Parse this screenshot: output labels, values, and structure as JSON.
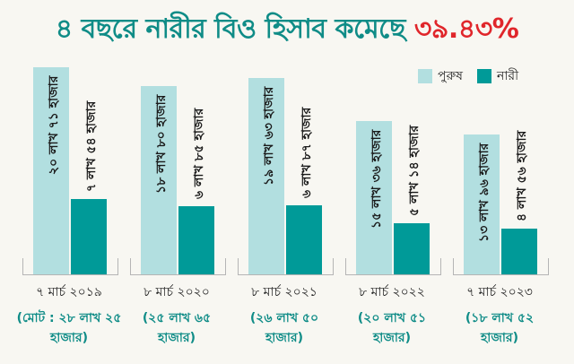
{
  "chart_data": {
    "type": "bar",
    "title": "৪ বছরে নারীর বিও হিসাব কমেছে",
    "title_highlight": "৩৯.৪৩%",
    "categories": [
      "৭ মার্চ ২০১৯",
      "৮ মার্চ ২০২০",
      "৮ মার্চ ২০২১",
      "৮ মার্চ ২০২২",
      "৭ মার্চ ২০২৩"
    ],
    "totals": [
      "(মোট : ২৮ লাখ ২৫ হাজার)",
      "(২৫ লাখ ৬৫ হাজার)",
      "(২৬ লাখ ৫০ হাজার)",
      "(২০ লাখ ৫১ হাজার)",
      "(১৮ লাখ ৫২ হাজার)"
    ],
    "unit": "লাখ",
    "series": [
      {
        "name": "পুরুষ",
        "color": "#b2dfe0",
        "values": [
          20.71,
          18.8,
          19.63,
          15.36,
          13.96
        ],
        "labels": [
          "২০ লাখ ৭১ হাজার",
          "১৮ লাখ ৮০ হাজার",
          "১৯ লাখ ৬৩ হাজার",
          "১৫ লাখ ৩৬ হাজার",
          "১৩ লাখ ৯৬ হাজার"
        ]
      },
      {
        "name": "নারী",
        "color": "#009a98",
        "values": [
          7.54,
          6.85,
          6.87,
          5.14,
          4.56
        ],
        "labels": [
          "৭ লাখ ৫৪ হাজার",
          "৬ লাখ ৮৫ হাজার",
          "৬ লাখ ৮৭ হাজার",
          "৫ লাখ ১৪ হাজার",
          "৪ লাখ ৫৬ হাজার"
        ]
      }
    ],
    "legend": "top-right",
    "grid": false,
    "ylim": [
      0,
      21
    ]
  },
  "colors": {
    "title": "#0f8c87",
    "highlight": "#e0262b"
  }
}
